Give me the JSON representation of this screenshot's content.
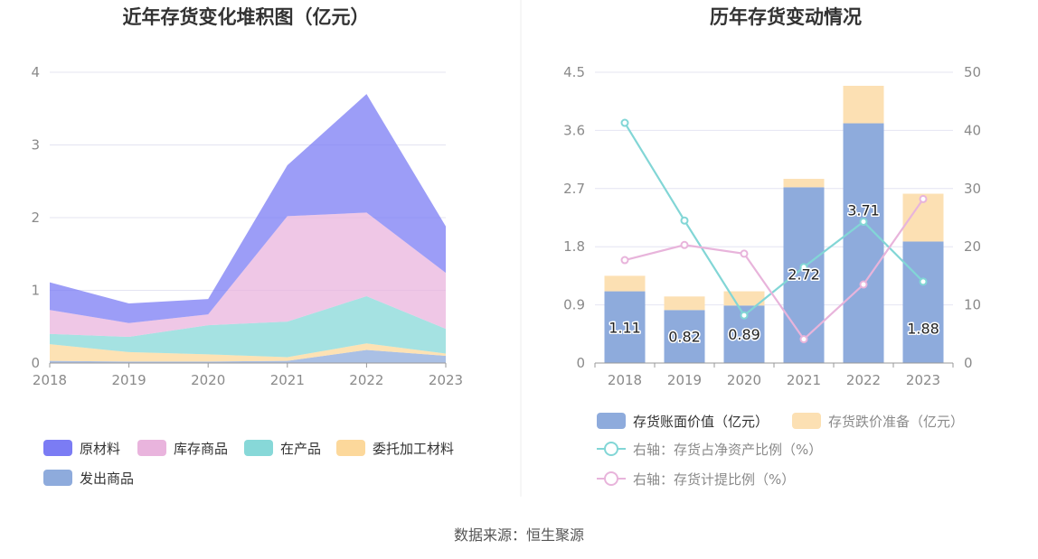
{
  "colors": {
    "raw_material": "#7b7cf4",
    "goods_in_stock": "#e9b4dd",
    "wip": "#87d8d8",
    "consigned": "#fcd89b",
    "shipped": "#8eabdc",
    "book_value": "#8eabdc",
    "impairment": "#fce0b3",
    "ratio_net_assets": "#82d6d6",
    "ratio_impairment": "#e8b4db",
    "grid": "#e4e4f2",
    "axis": "#999999"
  },
  "chart_data": [
    {
      "type": "area",
      "stacked": true,
      "title": "近年存货变化堆积图（亿元）",
      "categories": [
        "2018",
        "2019",
        "2020",
        "2021",
        "2022",
        "2023"
      ],
      "ylim": [
        0,
        4
      ],
      "yticks": [
        0,
        1,
        2,
        3,
        4
      ],
      "ytick_labels": [
        "0",
        "1",
        "2",
        "3",
        "4"
      ],
      "series": [
        {
          "name": "发出商品",
          "color_key": "shipped",
          "values": [
            0.03,
            0.02,
            0.02,
            0.03,
            0.18,
            0.1
          ]
        },
        {
          "name": "委托加工材料",
          "color_key": "consigned",
          "values": [
            0.23,
            0.13,
            0.1,
            0.05,
            0.09,
            0.03
          ]
        },
        {
          "name": "在产品",
          "color_key": "wip",
          "values": [
            0.14,
            0.21,
            0.4,
            0.49,
            0.65,
            0.34
          ]
        },
        {
          "name": "库存商品",
          "color_key": "goods_in_stock",
          "values": [
            0.33,
            0.19,
            0.15,
            1.45,
            1.15,
            0.77
          ]
        },
        {
          "name": "原材料",
          "color_key": "raw_material",
          "values": [
            0.38,
            0.27,
            0.21,
            0.7,
            1.63,
            0.64
          ]
        }
      ],
      "legend": [
        "原材料",
        "库存商品",
        "在产品",
        "委托加工材料",
        "发出商品"
      ],
      "legend_placement": "bottom"
    },
    {
      "type": "bar",
      "stacked": true,
      "title": "历年存货变动情况",
      "categories": [
        "2018",
        "2019",
        "2020",
        "2021",
        "2022",
        "2023"
      ],
      "ylim": [
        0,
        4.5
      ],
      "yticks": [
        0,
        0.9,
        1.8,
        2.7,
        3.6,
        4.5
      ],
      "ytick_labels": [
        "0",
        "0.9",
        "1.8",
        "2.7",
        "3.6",
        "4.5"
      ],
      "y2lim": [
        0,
        50
      ],
      "y2ticks": [
        0,
        10,
        20,
        30,
        40,
        50
      ],
      "y2tick_labels": [
        "0",
        "10",
        "20",
        "30",
        "40",
        "50"
      ],
      "series": [
        {
          "name": "存货账面价值（亿元）",
          "color_key": "book_value",
          "values": [
            1.11,
            0.82,
            0.89,
            2.72,
            3.71,
            1.88
          ],
          "labels": [
            "1.11",
            "0.82",
            "0.89",
            "2.72",
            "3.71",
            "1.88"
          ]
        },
        {
          "name": "存货跌价准备（亿元）",
          "color_key": "impairment",
          "values": [
            0.24,
            0.21,
            0.22,
            0.13,
            0.58,
            0.74
          ]
        }
      ],
      "line_series": [
        {
          "name": "右轴：存货占净资产比例（%）",
          "color_key": "ratio_net_assets",
          "values": [
            41.3,
            24.5,
            8.2,
            16.5,
            24.3,
            14.0
          ]
        },
        {
          "name": "右轴：存货计提比例（%）",
          "color_key": "ratio_impairment",
          "values": [
            17.7,
            20.3,
            18.8,
            4.1,
            13.5,
            28.2
          ]
        }
      ],
      "legend_placement": "bottom"
    }
  ],
  "footer": {
    "source": "数据来源：恒生聚源"
  }
}
